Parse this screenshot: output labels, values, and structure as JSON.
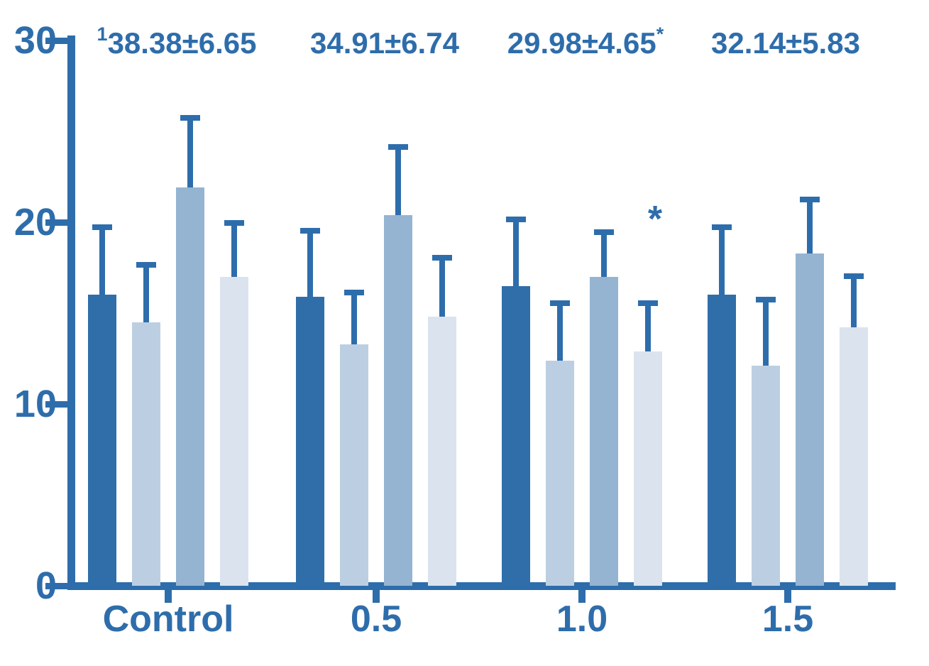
{
  "chart_data": {
    "type": "bar",
    "title": "",
    "xlabel": "",
    "ylabel": "",
    "categories": [
      "Control",
      "0.5",
      "1.0",
      "1.5"
    ],
    "series": [
      {
        "name": "series-1-dark-blue",
        "color": "#2f6ea9",
        "values": [
          16.0,
          15.9,
          16.5,
          16.0
        ],
        "errors": [
          3.9,
          3.8,
          3.8,
          3.9
        ]
      },
      {
        "name": "series-2-light-blue",
        "color": "#bccfe2",
        "values": [
          14.5,
          13.3,
          12.4,
          12.1
        ],
        "errors": [
          3.3,
          3.0,
          3.3,
          3.8
        ]
      },
      {
        "name": "series-3-medium-blue",
        "color": "#95b4d2",
        "values": [
          21.9,
          20.4,
          17.0,
          18.3
        ],
        "errors": [
          4.0,
          3.9,
          2.6,
          3.1
        ]
      },
      {
        "name": "series-4-pale-blue",
        "color": "#dbe3ee",
        "values": [
          17.0,
          14.8,
          12.9,
          14.2
        ],
        "errors": [
          3.1,
          3.4,
          2.8,
          3.0
        ]
      }
    ],
    "ylim": [
      0,
      30
    ],
    "yticks": [
      "0",
      "10",
      "20",
      "30"
    ],
    "grid": false,
    "legend": "none",
    "error_bars": "upper_only",
    "colors": {
      "axis": "#2e6dab",
      "text": "#2e6dab"
    },
    "annotations": [
      {
        "prefix_superscript": "1",
        "text": "38.38±6.65",
        "suffix_superscript": ""
      },
      {
        "prefix_superscript": "",
        "text": "34.91±6.74",
        "suffix_superscript": ""
      },
      {
        "prefix_superscript": "",
        "text": "29.98±4.65",
        "suffix_superscript": "*"
      },
      {
        "prefix_superscript": "",
        "text": "32.14±5.83",
        "suffix_superscript": ""
      }
    ],
    "point_annotations": [
      {
        "text": "*",
        "group": "1.0",
        "series_index": 3,
        "approx_y": 19.5
      }
    ]
  }
}
